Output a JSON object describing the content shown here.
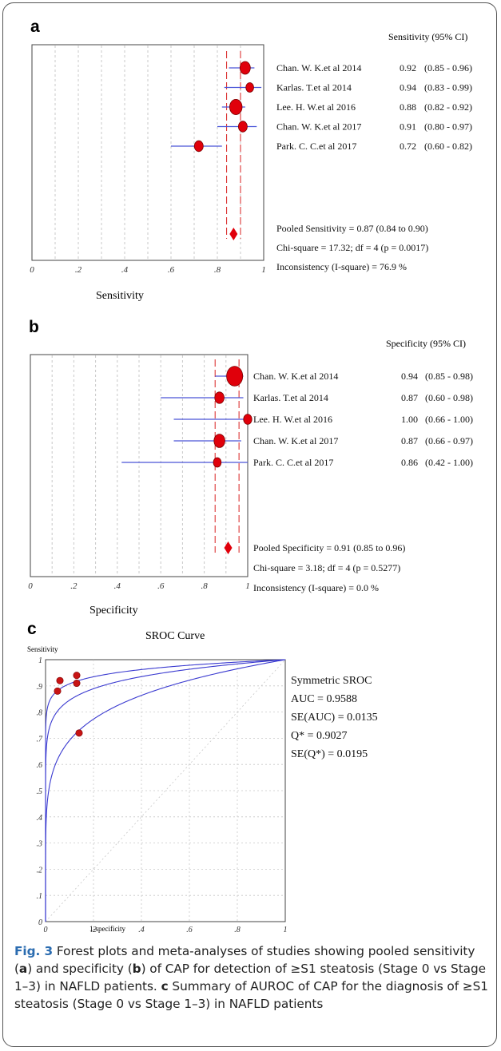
{
  "figure": {
    "caption": {
      "fig_label": "Fig. 3",
      "part1": " Forest plots and meta-analyses of studies showing pooled sensitivity (",
      "a": "a",
      "part2": ") and specificity (",
      "b": "b",
      "part3": ") of CAP for detection of ≥S1 steatosis (Stage 0 vs Stage 1–3) in NAFLD patients. ",
      "c": "c",
      "part4": " Summary of AUROC of CAP for the diagnosis of ≥S1 steatosis (Stage 0 vs Stage 1–3) in NAFLD patients"
    }
  },
  "chart_data": [
    {
      "type": "forest",
      "panel_label": "a",
      "column_header": "Sensitivity (95% CI)",
      "xlabel": "Sensitivity",
      "xlim": [
        0,
        1
      ],
      "x_ticks": [
        "0",
        ".2",
        ".4",
        ".6",
        ".8",
        "1"
      ],
      "x_tick_values": [
        0,
        0.2,
        0.4,
        0.6,
        0.8,
        1
      ],
      "studies": [
        {
          "name": "Chan. W. K.et al 2014",
          "estimate": 0.92,
          "lower": 0.85,
          "upper": 0.96,
          "label": "0.92",
          "ci_label": "(0.85 - 0.96)",
          "weight": 1.0
        },
        {
          "name": "Karlas. T.et al 2014",
          "estimate": 0.94,
          "lower": 0.83,
          "upper": 0.99,
          "label": "0.94",
          "ci_label": "(0.83 - 0.99)",
          "weight": 0.75
        },
        {
          "name": "Lee. H. W.et al 2016",
          "estimate": 0.88,
          "lower": 0.82,
          "upper": 0.92,
          "label": "0.88",
          "ci_label": "(0.82 - 0.92)",
          "weight": 1.2
        },
        {
          "name": "Chan. W. K.et al 2017",
          "estimate": 0.91,
          "lower": 0.8,
          "upper": 0.97,
          "label": "0.91",
          "ci_label": "(0.80 - 0.97)",
          "weight": 0.85
        },
        {
          "name": "Park. C. C.et al 2017",
          "estimate": 0.72,
          "lower": 0.6,
          "upper": 0.82,
          "label": "0.72",
          "ci_label": "(0.60 - 0.82)",
          "weight": 0.85
        }
      ],
      "pooled": {
        "estimate": 0.87,
        "lower": 0.84,
        "upper": 0.9
      },
      "summary_lines": [
        "Pooled Sensitivity = 0.87 (0.84 to 0.90)",
        "Chi-square = 17.32; df = 4 (p = 0.0017)",
        "Inconsistency (I-square) = 76.9 %"
      ],
      "colors": {
        "marker": "#e0000b",
        "ci_line": "#4a55d8",
        "pooled_line": "#d82020"
      }
    },
    {
      "type": "forest",
      "panel_label": "b",
      "column_header": "Specificity (95% CI)",
      "xlabel": "Specificity",
      "xlim": [
        0,
        1
      ],
      "x_ticks": [
        "0",
        ".2",
        ".4",
        ".6",
        ".8",
        "1"
      ],
      "x_tick_values": [
        0,
        0.2,
        0.4,
        0.6,
        0.8,
        1
      ],
      "studies": [
        {
          "name": "Chan. W. K.et al 2014",
          "estimate": 0.94,
          "lower": 0.85,
          "upper": 0.98,
          "label": "0.94",
          "ci_label": "(0.85 - 0.98)",
          "weight": 1.55
        },
        {
          "name": "Karlas. T.et al 2014",
          "estimate": 0.87,
          "lower": 0.6,
          "upper": 0.98,
          "label": "0.87",
          "ci_label": "(0.60 - 0.98)",
          "weight": 0.9
        },
        {
          "name": "Lee. H. W.et al 2016",
          "estimate": 1.0,
          "lower": 0.66,
          "upper": 1.0,
          "label": "1.00",
          "ci_label": "(0.66 - 1.00)",
          "weight": 0.8
        },
        {
          "name": "Chan. W. K.et al 2017",
          "estimate": 0.87,
          "lower": 0.66,
          "upper": 0.97,
          "label": "0.87",
          "ci_label": "(0.66 - 0.97)",
          "weight": 1.05
        },
        {
          "name": "Park. C. C.et al 2017",
          "estimate": 0.86,
          "lower": 0.42,
          "upper": 1.0,
          "label": "0.86",
          "ci_label": "(0.42 - 1.00)",
          "weight": 0.75
        }
      ],
      "pooled": {
        "estimate": 0.91,
        "lower": 0.85,
        "upper": 0.96
      },
      "summary_lines": [
        "Pooled Specificity = 0.91 (0.85 to 0.96)",
        "Chi-square = 3.18; df = 4 (p = 0.5277)",
        "Inconsistency (I-square) = 0.0 %"
      ],
      "colors": {
        "marker": "#e0000b",
        "ci_line": "#4a55d8",
        "pooled_line": "#d82020"
      }
    },
    {
      "type": "scatter",
      "panel_label": "c",
      "title": "SROC Curve",
      "ylabel": "Sensitivity",
      "xlabel": "1-specificity",
      "xlim": [
        0,
        1
      ],
      "ylim": [
        0,
        1
      ],
      "x_ticks": [
        "0",
        ".2",
        ".4",
        ".6",
        ".8",
        "1"
      ],
      "x_tick_values": [
        0,
        0.2,
        0.4,
        0.6,
        0.8,
        1
      ],
      "y_ticks": [
        "0",
        ".1",
        ".2",
        ".3",
        ".4",
        ".5",
        ".6",
        ".7",
        ".8",
        ".9",
        "1"
      ],
      "y_tick_values": [
        0,
        0.1,
        0.2,
        0.3,
        0.4,
        0.5,
        0.6,
        0.7,
        0.8,
        0.9,
        1
      ],
      "points": [
        {
          "x": 0.06,
          "y": 0.92
        },
        {
          "x": 0.13,
          "y": 0.94
        },
        {
          "x": 0.13,
          "y": 0.91
        },
        {
          "x": 0.05,
          "y": 0.88
        },
        {
          "x": 0.14,
          "y": 0.72
        }
      ],
      "curve": {
        "auc": 0.9588,
        "se_auc": 0.0135
      },
      "legend_lines": [
        "Symmetric SROC",
        "AUC = 0.9588",
        "SE(AUC) = 0.0135",
        "Q* = 0.9027",
        "SE(Q*) = 0.0195"
      ],
      "colors": {
        "point": "#c81414",
        "curve": "#3a3ad0",
        "grid": "#c8c8c8"
      }
    }
  ]
}
